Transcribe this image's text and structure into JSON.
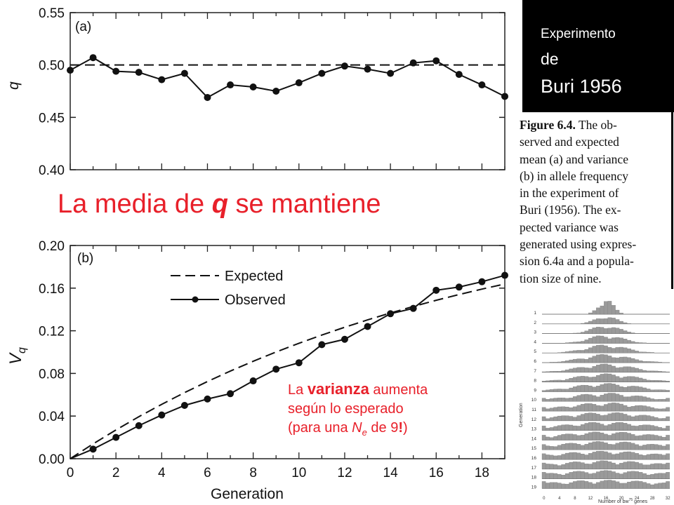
{
  "chart_data": [
    {
      "type": "line",
      "panel_label": "(a)",
      "ylabel": "q",
      "ylim": [
        0.4,
        0.55
      ],
      "xlim": [
        0,
        19
      ],
      "yticks": [
        "0.40",
        "0.45",
        "0.50",
        "0.55"
      ],
      "series": [
        {
          "style": "dashed",
          "x": [
            0,
            19
          ],
          "values": [
            0.5,
            0.5
          ]
        },
        {
          "style": "solid-dots",
          "x": [
            0,
            1,
            2,
            3,
            4,
            5,
            6,
            7,
            8,
            9,
            10,
            11,
            12,
            13,
            14,
            15,
            16,
            17,
            18,
            19
          ],
          "values": [
            0.495,
            0.507,
            0.494,
            0.493,
            0.486,
            0.492,
            0.469,
            0.481,
            0.479,
            0.475,
            0.483,
            0.492,
            0.499,
            0.496,
            0.492,
            0.502,
            0.504,
            0.491,
            0.481,
            0.47
          ]
        }
      ]
    },
    {
      "type": "line",
      "panel_label": "(b)",
      "xlabel": "Generation",
      "ylabel": "V",
      "ylabel_sub": "q",
      "xlim": [
        0,
        19
      ],
      "ylim": [
        0,
        0.2
      ],
      "xticks": [
        "0",
        "2",
        "4",
        "6",
        "8",
        "10",
        "12",
        "14",
        "16",
        "18"
      ],
      "yticks": [
        "0.00",
        "0.04",
        "0.08",
        "0.12",
        "0.16",
        "0.20"
      ],
      "series": [
        {
          "name": "Expected",
          "style": "dashed",
          "x": [
            0,
            1,
            2,
            3,
            4,
            5,
            6,
            7,
            8,
            9,
            10,
            11,
            12,
            13,
            14,
            15,
            16,
            17,
            18,
            19
          ],
          "values": [
            0.0,
            0.0139,
            0.027,
            0.0394,
            0.051,
            0.062,
            0.0724,
            0.0822,
            0.0914,
            0.1001,
            0.1083,
            0.116,
            0.1233,
            0.1302,
            0.1367,
            0.1428,
            0.1486,
            0.154,
            0.1591,
            0.1639
          ]
        },
        {
          "name": "Observed",
          "style": "solid-dots",
          "x": [
            0,
            1,
            2,
            3,
            4,
            5,
            6,
            7,
            8,
            9,
            10,
            11,
            12,
            13,
            14,
            15,
            16,
            17,
            18,
            19
          ],
          "values": [
            0.0,
            0.009,
            0.02,
            0.031,
            0.041,
            0.05,
            0.056,
            0.061,
            0.073,
            0.084,
            0.09,
            0.107,
            0.112,
            0.124,
            0.136,
            0.141,
            0.158,
            0.161,
            0.166,
            0.172
          ]
        }
      ]
    }
  ],
  "text": {
    "mean_note": "La media de ",
    "mean_note_q": "q",
    "mean_note_end": " se mantiene",
    "var_note_1a": "La ",
    "var_note_1b": "varianza",
    "var_note_1c": " aumenta",
    "var_note_2": "según lo esperado",
    "var_note_3a": "(para una ",
    "var_note_3b": "N",
    "var_note_3c": "e",
    "var_note_3d": " de 9",
    "var_note_3e": "!",
    "var_note_3f": ")",
    "box_line1": "Experimento",
    "box_line2": "de",
    "box_line3": "Buri 1956",
    "caption_label": "Figure 6.4.",
    "caption_lines": [
      " The ob-",
      "served and expected",
      "mean (a) and variance",
      "(b) in allele frequency",
      "in the experiment of",
      "Buri (1956). The ex-",
      "pected variance was",
      "generated using expres-",
      "sion 6.4a and a popula-",
      "tion size of nine."
    ]
  },
  "inset": {
    "ylabel": "Generation",
    "xlabel_a": "Number of bw",
    "xlabel_sup": "75",
    "xlabel_b": " genes",
    "xticks": [
      "0",
      "4",
      "8",
      "12",
      "16",
      "20",
      "24",
      "28",
      "32"
    ],
    "rows": [
      "1",
      "2",
      "3",
      "4",
      "5",
      "6",
      "7",
      "8",
      "9",
      "10",
      "11",
      "12",
      "13",
      "14",
      "15",
      "16",
      "17",
      "18",
      "19"
    ],
    "bar_color": "#9a9a9a"
  }
}
